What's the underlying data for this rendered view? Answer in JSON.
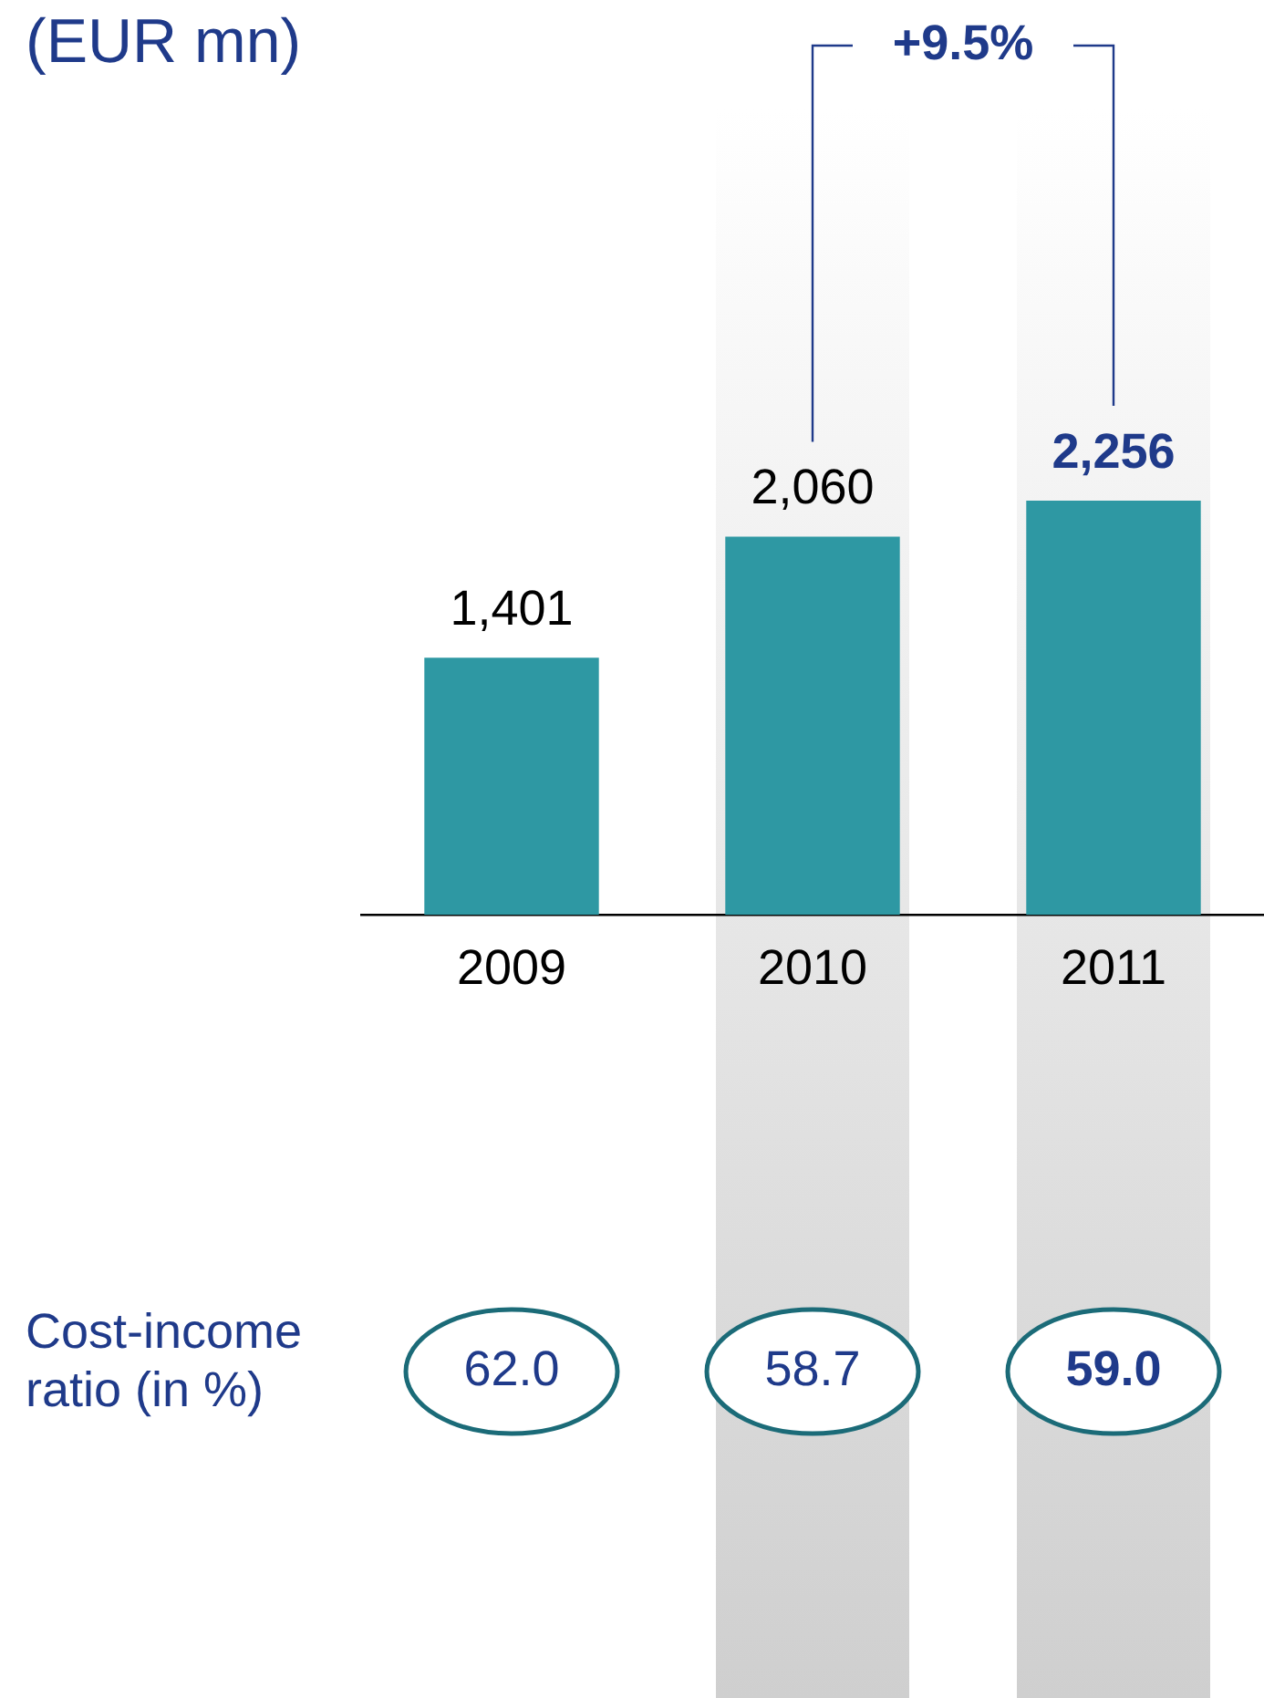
{
  "chart_data": {
    "type": "bar",
    "title": "(EUR mn)",
    "categories": [
      "2009",
      "2010",
      "2011"
    ],
    "values": [
      1401,
      2060,
      2256
    ],
    "value_labels": [
      "1,401",
      "2,060",
      "2,256"
    ],
    "color": "#2e98a3",
    "legend": false,
    "grid": false,
    "tick_labels": "x",
    "bands": [
      {
        "axis": "x",
        "from": "2010",
        "to": "2010",
        "color": "#cfcfcf"
      },
      {
        "axis": "x",
        "from": "2011",
        "to": "2011",
        "color": "#cfcfcf"
      }
    ],
    "annotations": [
      "+9.5%",
      "Cost-income ratio (in %)",
      "62.0",
      "58.7",
      "59.0"
    ]
  }
}
